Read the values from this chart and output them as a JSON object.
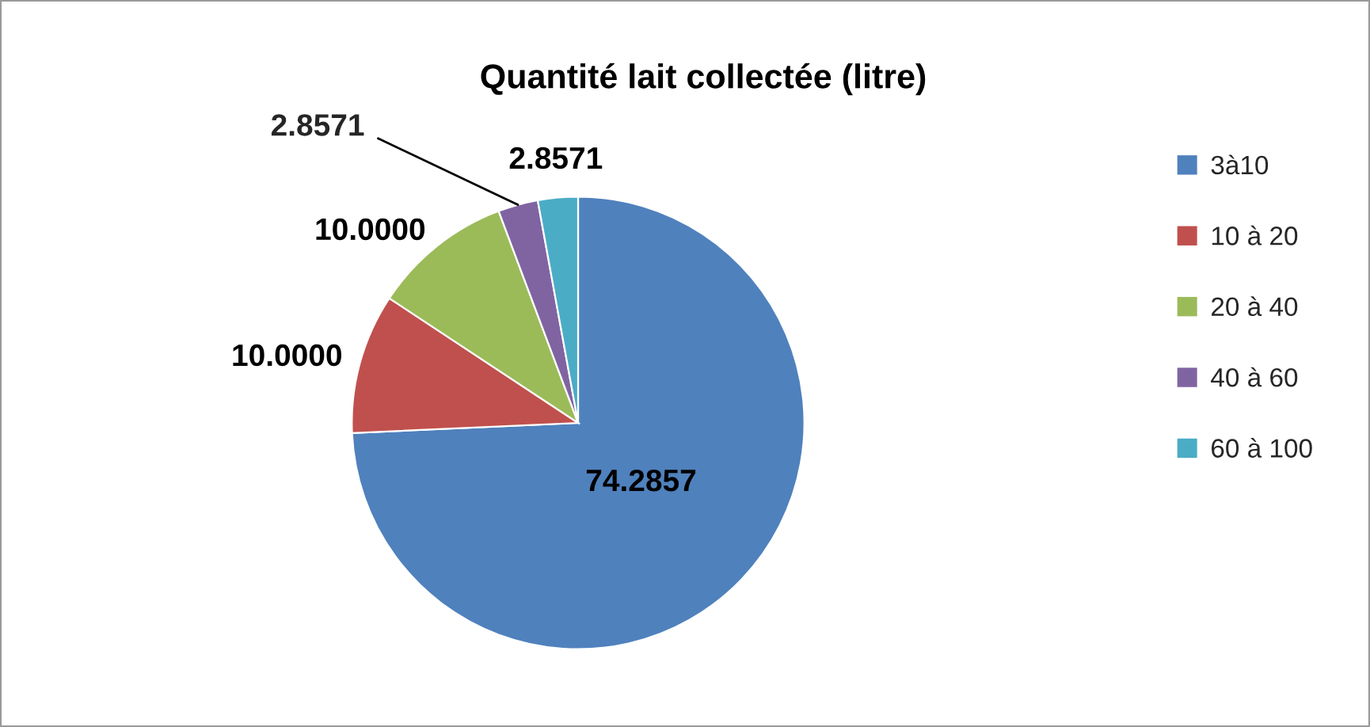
{
  "chart_data": {
    "type": "pie",
    "title": "Quantité lait collectée (litre)",
    "categories": [
      "3à10",
      "10 à 20",
      "20 à 40",
      "40 à 60",
      "60 à 100"
    ],
    "values": [
      74.2857,
      10.0,
      10.0,
      2.8571,
      2.8571
    ],
    "value_labels": [
      "74.2857",
      "10.0000",
      "10.0000",
      "2.8571",
      "2.8571"
    ],
    "colors": [
      "#4f81bd",
      "#c0504d",
      "#9bbb59",
      "#8064a2",
      "#4bacc6"
    ],
    "legend": "right"
  }
}
